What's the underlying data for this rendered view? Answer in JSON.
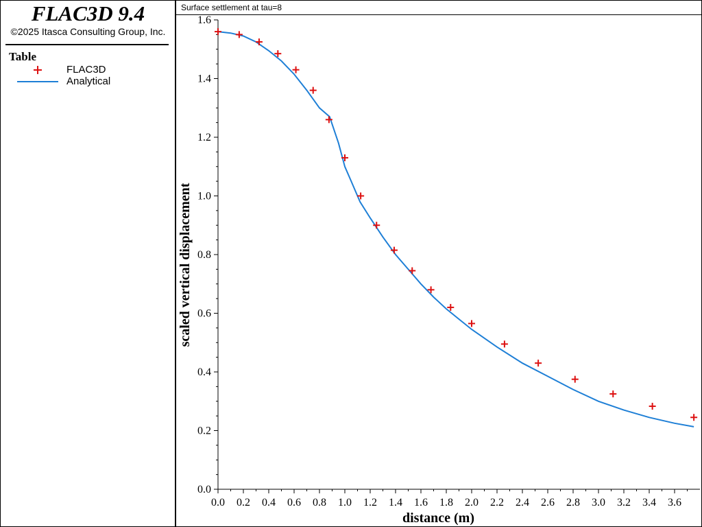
{
  "app": {
    "title": "FLAC3D 9.4",
    "copyright": "©2025 Itasca Consulting Group, Inc."
  },
  "legend": {
    "heading": "Table",
    "items": [
      {
        "label": "FLAC3D",
        "marker": "plus",
        "color": "#dd1111"
      },
      {
        "label": "Analytical",
        "marker": "line",
        "color": "#1e7fd6"
      }
    ]
  },
  "chart_data": {
    "type": "scatter",
    "title": "Surface settlement at tau=8",
    "xlabel": "distance (m)",
    "ylabel": "scaled vertical displacement",
    "xlim": [
      0,
      3.8
    ],
    "ylim": [
      0,
      1.6
    ],
    "xticks": [
      "0.0",
      "0.2",
      "0.4",
      "0.6",
      "0.8",
      "1.0",
      "1.2",
      "1.4",
      "1.6",
      "1.8",
      "2.0",
      "2.2",
      "2.4",
      "2.6",
      "2.8",
      "3.0",
      "3.2",
      "3.4",
      "3.6"
    ],
    "yticks": [
      "0.0",
      "0.2",
      "0.4",
      "0.6",
      "0.8",
      "1.0",
      "1.2",
      "1.4",
      "1.6"
    ],
    "grid": false,
    "legend_position": "left-panel",
    "series": [
      {
        "name": "FLAC3D",
        "kind": "markers",
        "color": "#dd1111",
        "x": [
          0.0,
          0.167,
          0.324,
          0.472,
          0.614,
          0.75,
          0.875,
          1.0,
          1.125,
          1.25,
          1.389,
          1.531,
          1.679,
          1.834,
          2.0,
          2.259,
          2.525,
          2.815,
          3.115,
          3.425,
          3.752
        ],
        "y": [
          1.56,
          1.55,
          1.525,
          1.485,
          1.43,
          1.36,
          1.26,
          1.13,
          1.0,
          0.9,
          0.815,
          0.745,
          0.68,
          0.62,
          0.565,
          0.495,
          0.43,
          0.375,
          0.325,
          0.283,
          0.245
        ]
      },
      {
        "name": "Analytical",
        "kind": "line",
        "color": "#1e7fd6",
        "x": [
          0.0,
          0.1,
          0.2,
          0.3,
          0.4,
          0.5,
          0.6,
          0.7,
          0.8,
          0.88,
          0.95,
          1.0,
          1.05,
          1.12,
          1.2,
          1.3,
          1.4,
          1.5,
          1.6,
          1.7,
          1.8,
          1.9,
          2.0,
          2.2,
          2.4,
          2.6,
          2.8,
          3.0,
          3.2,
          3.4,
          3.6,
          3.752
        ],
        "y": [
          1.56,
          1.555,
          1.545,
          1.525,
          1.495,
          1.46,
          1.415,
          1.36,
          1.3,
          1.27,
          1.18,
          1.1,
          1.05,
          0.98,
          0.925,
          0.86,
          0.8,
          0.75,
          0.7,
          0.655,
          0.615,
          0.58,
          0.545,
          0.485,
          0.43,
          0.385,
          0.34,
          0.3,
          0.27,
          0.245,
          0.225,
          0.213
        ]
      }
    ]
  }
}
